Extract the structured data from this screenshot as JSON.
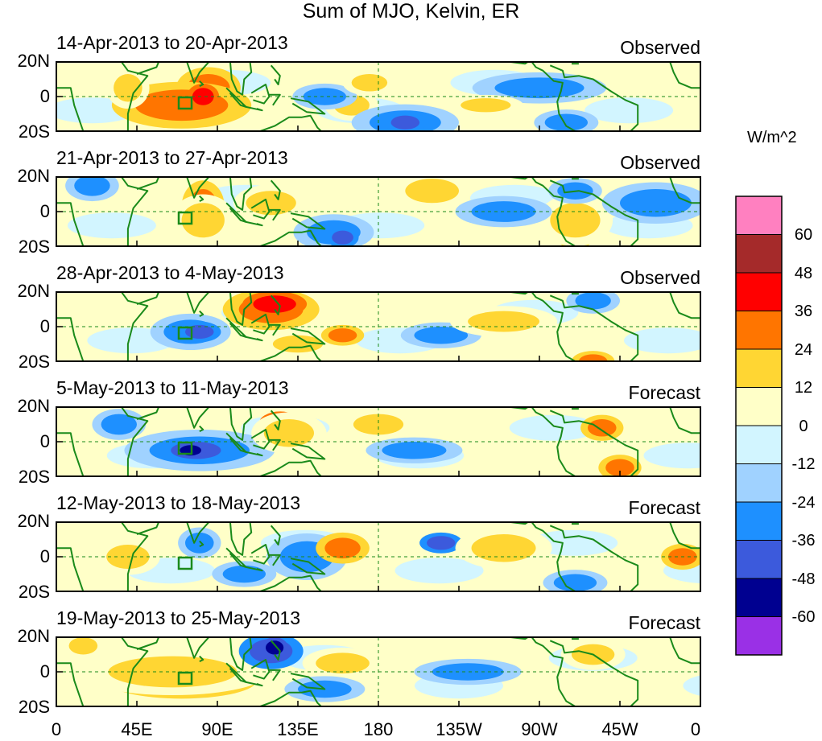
{
  "title": "Sum of MJO, Kelvin, ER",
  "panels": [
    {
      "period": "14-Apr-2013 to 20-Apr-2013",
      "kind": "Observed"
    },
    {
      "period": "21-Apr-2013 to 27-Apr-2013",
      "kind": "Observed"
    },
    {
      "period": "28-Apr-2013 to 4-May-2013",
      "kind": "Observed"
    },
    {
      "period": "5-May-2013 to 11-May-2013",
      "kind": "Forecast"
    },
    {
      "period": "12-May-2013 to 18-May-2013",
      "kind": "Forecast"
    },
    {
      "period": "19-May-2013 to 25-May-2013",
      "kind": "Forecast"
    }
  ],
  "lat_labels": [
    "20N",
    "0",
    "20S"
  ],
  "lon_labels": [
    "0",
    "45E",
    "90E",
    "135E",
    "180",
    "135W",
    "90W",
    "45W",
    "0"
  ],
  "colorbar": {
    "units": "W/m^2",
    "labels": [
      "60",
      "48",
      "36",
      "24",
      "12",
      "0",
      "-12",
      "-24",
      "-36",
      "-48",
      "-60"
    ],
    "colors": [
      "#ff80c0",
      "#a52a2a",
      "#ff0000",
      "#ff7500",
      "#ffd633",
      "#ffffc8",
      "#d2f5ff",
      "#a0d2ff",
      "#1e90ff",
      "#3c5adc",
      "#000090",
      "#9a30e6"
    ]
  },
  "anomalies": [
    [
      [
        "o",
        85,
        5,
        12,
        8
      ],
      [
        "o",
        70,
        -5,
        26,
        9
      ],
      [
        "r",
        82,
        0,
        6,
        5
      ],
      [
        "y",
        40,
        5,
        8,
        8
      ],
      [
        "y",
        165,
        -5,
        10,
        6
      ],
      [
        "b",
        195,
        -15,
        20,
        7
      ],
      [
        "B",
        195,
        -15,
        8,
        4
      ],
      [
        "b",
        285,
        -15,
        12,
        5
      ],
      [
        "b",
        150,
        0,
        12,
        5
      ],
      [
        "b",
        270,
        5,
        25,
        6
      ],
      [
        "y",
        175,
        8,
        10,
        5
      ],
      [
        "y",
        240,
        -5,
        14,
        4
      ]
    ],
    [
      [
        "o",
        82,
        3,
        8,
        10
      ],
      [
        "y",
        82,
        -5,
        12,
        10
      ],
      [
        "y",
        120,
        5,
        14,
        7
      ],
      [
        "b",
        155,
        -12,
        15,
        7
      ],
      [
        "B",
        160,
        -15,
        6,
        4
      ],
      [
        "o",
        290,
        -10,
        8,
        8
      ],
      [
        "y",
        290,
        -5,
        14,
        10
      ],
      [
        "b",
        335,
        5,
        20,
        8
      ],
      [
        "b",
        250,
        0,
        18,
        6
      ],
      [
        "b",
        20,
        15,
        10,
        6
      ],
      [
        "y",
        210,
        12,
        15,
        7
      ],
      [
        "b",
        290,
        12,
        10,
        5
      ]
    ],
    [
      [
        "o",
        120,
        10,
        18,
        8
      ],
      [
        "r",
        122,
        13,
        12,
        5
      ],
      [
        "b",
        75,
        -3,
        15,
        7
      ],
      [
        "B",
        80,
        -3,
        8,
        4
      ],
      [
        "y",
        135,
        -10,
        14,
        5
      ],
      [
        "o",
        160,
        -5,
        8,
        4
      ],
      [
        "b",
        215,
        -5,
        15,
        5
      ],
      [
        "y",
        250,
        3,
        20,
        6
      ],
      [
        "o",
        300,
        -20,
        8,
        4
      ],
      [
        "b",
        300,
        15,
        10,
        5
      ]
    ],
    [
      [
        "b",
        80,
        -5,
        28,
        8
      ],
      [
        "B",
        78,
        -5,
        14,
        5
      ],
      [
        "n",
        75,
        -5,
        6,
        3
      ],
      [
        "r",
        125,
        10,
        8,
        5
      ],
      [
        "y",
        130,
        5,
        14,
        8
      ],
      [
        "o",
        305,
        8,
        8,
        5
      ],
      [
        "o",
        315,
        -15,
        8,
        5
      ],
      [
        "y",
        180,
        10,
        14,
        6
      ],
      [
        "b",
        200,
        -5,
        18,
        5
      ],
      [
        "b",
        35,
        10,
        10,
        6
      ]
    ],
    [
      [
        "b",
        140,
        0,
        15,
        9
      ],
      [
        "b",
        80,
        8,
        8,
        6
      ],
      [
        "o",
        160,
        5,
        10,
        6
      ],
      [
        "B",
        215,
        8,
        8,
        4
      ],
      [
        "y",
        250,
        5,
        18,
        8
      ],
      [
        "o",
        350,
        0,
        8,
        5
      ],
      [
        "b",
        290,
        -15,
        12,
        5
      ],
      [
        "y",
        40,
        0,
        12,
        7
      ],
      [
        "b",
        105,
        -10,
        12,
        5
      ]
    ],
    [
      [
        "o",
        70,
        -5,
        28,
        7
      ],
      [
        "r",
        65,
        -5,
        12,
        3
      ],
      [
        "y",
        65,
        0,
        36,
        9
      ],
      [
        "B",
        120,
        12,
        12,
        7
      ],
      [
        "n",
        122,
        14,
        5,
        4
      ],
      [
        "y",
        160,
        5,
        15,
        6
      ],
      [
        "b",
        150,
        -10,
        15,
        5
      ],
      [
        "y",
        300,
        10,
        12,
        6
      ],
      [
        "b",
        230,
        0,
        20,
        5
      ],
      [
        "y",
        15,
        15,
        8,
        5
      ]
    ]
  ]
}
